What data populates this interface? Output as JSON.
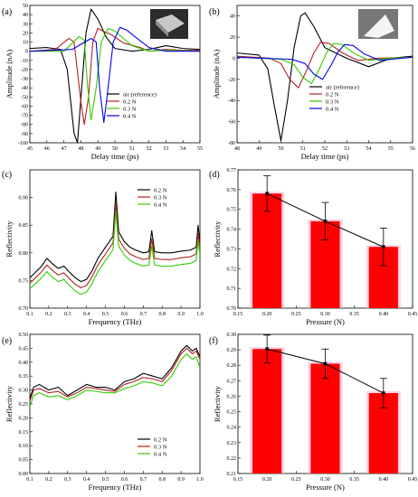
{
  "colors": {
    "black": "#000000",
    "red": "#b22222",
    "green": "#33cc00",
    "blue": "#0000ee",
    "bar": "#ff0000",
    "bar_glow": "#ffb3d0"
  },
  "chart_data": [
    {
      "panel": "(a)",
      "type": "line",
      "xlabel": "Delay time (ps)",
      "ylabel": "Amplitude (nA)",
      "xlim": [
        45,
        55
      ],
      "ylim": [
        -100,
        50
      ],
      "xticks": [
        45,
        46,
        47,
        48,
        49,
        50,
        51,
        52,
        53,
        54,
        55
      ],
      "yticks": [
        -100,
        -90,
        -80,
        -70,
        -60,
        -50,
        -40,
        -30,
        -20,
        -10,
        0,
        10,
        20,
        30,
        40,
        50
      ],
      "inset_photo": true,
      "legend": "lower-right",
      "series": [
        {
          "name": "air (reference)",
          "color": "black",
          "x": [
            45,
            46,
            46.8,
            47.2,
            47.6,
            47.8,
            48.05,
            48.3,
            48.6,
            49,
            49.5,
            50,
            51,
            52,
            53,
            54,
            55
          ],
          "y": [
            3,
            4,
            2,
            -20,
            -90,
            -100,
            -40,
            20,
            46,
            35,
            15,
            3,
            0,
            2,
            6,
            3,
            2
          ]
        },
        {
          "name": "0.2 N",
          "color": "red",
          "x": [
            45,
            46.5,
            47.3,
            47.6,
            48,
            48.2,
            48.45,
            48.7,
            49,
            49.3,
            49.8,
            50.5,
            51.5,
            52,
            53,
            54,
            55
          ],
          "y": [
            0,
            2,
            14,
            10,
            -55,
            -80,
            -50,
            10,
            25,
            22,
            18,
            9,
            4,
            0,
            2,
            1,
            1
          ]
        },
        {
          "name": "0.3 N",
          "color": "green",
          "x": [
            45,
            47,
            47.9,
            48.2,
            48.4,
            48.6,
            48.9,
            49.2,
            49.6,
            50,
            50.5,
            51,
            52,
            53,
            55
          ],
          "y": [
            0,
            0,
            16,
            12,
            -40,
            -75,
            -40,
            10,
            25,
            22,
            14,
            6,
            0,
            1,
            0
          ]
        },
        {
          "name": "0.4 N",
          "color": "blue",
          "x": [
            45,
            47.5,
            48.6,
            48.9,
            49.1,
            49.35,
            49.6,
            49.9,
            50.3,
            50.7,
            51.3,
            52,
            53,
            55
          ],
          "y": [
            0,
            2,
            14,
            10,
            -40,
            -78,
            -40,
            10,
            26,
            23,
            14,
            4,
            0,
            0
          ]
        }
      ]
    },
    {
      "panel": "(b)",
      "type": "line",
      "xlabel": "Delay time (ps)",
      "ylabel": "Amplitude (nA)",
      "xlim": [
        48,
        56
      ],
      "ylim": [
        -80,
        50
      ],
      "xticks": [
        48,
        49,
        50,
        51,
        52,
        53,
        54,
        55,
        56
      ],
      "yticks": [
        -80,
        -60,
        -40,
        -20,
        0,
        20,
        40
      ],
      "inset_photo": true,
      "legend": "lower-right",
      "series": [
        {
          "name": "air (reference)",
          "color": "black",
          "x": [
            48,
            49,
            49.4,
            49.7,
            50,
            50.3,
            50.6,
            50.9,
            51.1,
            51.5,
            52,
            53,
            54,
            55,
            56
          ],
          "y": [
            5,
            3,
            -10,
            -45,
            -78,
            -40,
            10,
            40,
            43,
            30,
            10,
            0,
            -8,
            0,
            2
          ]
        },
        {
          "name": "0.2 N",
          "color": "red",
          "x": [
            48,
            49.5,
            50,
            50.4,
            50.8,
            51.2,
            51.5,
            51.8,
            52.2,
            52.8,
            53.5,
            54.5,
            56
          ],
          "y": [
            2,
            0,
            -5,
            -20,
            -28,
            -10,
            5,
            15,
            14,
            5,
            -2,
            0,
            1
          ]
        },
        {
          "name": "0.3 N",
          "color": "green",
          "x": [
            48,
            50,
            50.6,
            51,
            51.4,
            51.8,
            52.1,
            52.4,
            52.8,
            53.3,
            54,
            55,
            56
          ],
          "y": [
            1,
            -1,
            -6,
            -18,
            -24,
            -8,
            6,
            14,
            13,
            5,
            -2,
            0,
            1
          ]
        },
        {
          "name": "0.4 N",
          "color": "blue",
          "x": [
            48,
            50.5,
            51.1,
            51.5,
            51.9,
            52.3,
            52.6,
            52.9,
            53.3,
            53.8,
            54.5,
            55.5,
            56
          ],
          "y": [
            1,
            -1,
            -5,
            -15,
            -20,
            -6,
            6,
            13,
            12,
            4,
            -2,
            0,
            1
          ]
        }
      ]
    },
    {
      "panel": "(c)",
      "type": "line",
      "xlabel": "Frequency (THz)",
      "ylabel": "Reflectivity",
      "xlim": [
        0.1,
        1.0
      ],
      "ylim": [
        0.7,
        0.95
      ],
      "xticks": [
        0.1,
        0.2,
        0.3,
        0.4,
        0.5,
        0.6,
        0.7,
        0.8,
        0.9,
        1.0
      ],
      "yticks": [
        0.7,
        0.75,
        0.8,
        0.85,
        0.9
      ],
      "legend": "top-right",
      "series": [
        {
          "name": "0.2 N",
          "color": "black",
          "x": [
            0.1,
            0.13,
            0.16,
            0.19,
            0.22,
            0.25,
            0.28,
            0.31,
            0.34,
            0.37,
            0.4,
            0.43,
            0.46,
            0.49,
            0.52,
            0.54,
            0.555,
            0.57,
            0.6,
            0.63,
            0.66,
            0.7,
            0.73,
            0.745,
            0.76,
            0.8,
            0.85,
            0.9,
            0.95,
            0.98,
            0.99,
            1.0
          ],
          "y": [
            0.755,
            0.765,
            0.775,
            0.79,
            0.78,
            0.772,
            0.776,
            0.765,
            0.755,
            0.748,
            0.752,
            0.768,
            0.79,
            0.805,
            0.82,
            0.83,
            0.91,
            0.838,
            0.82,
            0.81,
            0.805,
            0.8,
            0.802,
            0.84,
            0.802,
            0.8,
            0.8,
            0.803,
            0.805,
            0.81,
            0.85,
            0.82
          ]
        },
        {
          "name": "0.3 N",
          "color": "red",
          "x": [
            0.1,
            0.13,
            0.16,
            0.19,
            0.22,
            0.25,
            0.28,
            0.31,
            0.34,
            0.37,
            0.4,
            0.43,
            0.46,
            0.49,
            0.52,
            0.54,
            0.555,
            0.57,
            0.6,
            0.63,
            0.66,
            0.7,
            0.73,
            0.745,
            0.76,
            0.8,
            0.85,
            0.9,
            0.95,
            0.98,
            0.99,
            1.0
          ],
          "y": [
            0.745,
            0.755,
            0.765,
            0.778,
            0.768,
            0.76,
            0.764,
            0.753,
            0.743,
            0.737,
            0.741,
            0.757,
            0.778,
            0.793,
            0.808,
            0.818,
            0.89,
            0.825,
            0.808,
            0.798,
            0.793,
            0.788,
            0.79,
            0.825,
            0.79,
            0.788,
            0.788,
            0.791,
            0.793,
            0.798,
            0.835,
            0.808
          ]
        },
        {
          "name": "0.4 N",
          "color": "green",
          "x": [
            0.1,
            0.13,
            0.16,
            0.19,
            0.22,
            0.25,
            0.28,
            0.31,
            0.34,
            0.37,
            0.4,
            0.43,
            0.46,
            0.49,
            0.52,
            0.54,
            0.555,
            0.57,
            0.6,
            0.63,
            0.66,
            0.7,
            0.73,
            0.745,
            0.76,
            0.8,
            0.85,
            0.9,
            0.95,
            0.98,
            0.99,
            1.0
          ],
          "y": [
            0.735,
            0.744,
            0.754,
            0.766,
            0.756,
            0.748,
            0.752,
            0.741,
            0.731,
            0.725,
            0.729,
            0.745,
            0.766,
            0.781,
            0.796,
            0.806,
            0.875,
            0.812,
            0.796,
            0.786,
            0.781,
            0.776,
            0.778,
            0.812,
            0.778,
            0.776,
            0.776,
            0.779,
            0.781,
            0.786,
            0.822,
            0.796
          ]
        }
      ]
    },
    {
      "panel": "(d)",
      "type": "bar",
      "xlabel": "Pressure (N)",
      "ylabel": "Reflectivity",
      "xlim": [
        0.15,
        0.45
      ],
      "ylim": [
        0.7,
        0.77
      ],
      "xticks": [
        0.15,
        0.2,
        0.25,
        0.3,
        0.35,
        0.4,
        0.45
      ],
      "yticks": [
        0.7,
        0.71,
        0.72,
        0.73,
        0.74,
        0.75,
        0.76,
        0.77
      ],
      "x": [
        0.2,
        0.3,
        0.4
      ],
      "values": [
        0.758,
        0.744,
        0.731
      ],
      "errors": [
        0.009,
        0.0095,
        0.0095
      ],
      "bar_width": 0.05,
      "trend_line": true
    },
    {
      "panel": "(e)",
      "type": "line",
      "xlabel": "Frequency (THz)",
      "ylabel": "Reflectivity",
      "xlim": [
        0.1,
        1.0
      ],
      "ylim": [
        0.0,
        0.5
      ],
      "xticks": [
        0.1,
        0.2,
        0.3,
        0.4,
        0.5,
        0.6,
        0.7,
        0.8,
        0.9,
        1.0
      ],
      "yticks": [
        0.0,
        0.05,
        0.1,
        0.15,
        0.2,
        0.25,
        0.3,
        0.35,
        0.4,
        0.45,
        0.5
      ],
      "legend": "bottom-right",
      "series": [
        {
          "name": "0.2 N",
          "color": "black",
          "x": [
            0.1,
            0.12,
            0.15,
            0.2,
            0.25,
            0.3,
            0.35,
            0.4,
            0.45,
            0.5,
            0.55,
            0.6,
            0.65,
            0.7,
            0.75,
            0.8,
            0.85,
            0.9,
            0.93,
            0.96,
            0.98,
            1.0
          ],
          "y": [
            0.27,
            0.31,
            0.32,
            0.3,
            0.31,
            0.28,
            0.3,
            0.32,
            0.31,
            0.31,
            0.3,
            0.33,
            0.34,
            0.36,
            0.35,
            0.34,
            0.38,
            0.44,
            0.46,
            0.44,
            0.45,
            0.42
          ]
        },
        {
          "name": "0.3 N",
          "color": "red",
          "x": [
            0.1,
            0.12,
            0.15,
            0.2,
            0.25,
            0.3,
            0.35,
            0.4,
            0.45,
            0.5,
            0.55,
            0.6,
            0.65,
            0.7,
            0.75,
            0.8,
            0.85,
            0.9,
            0.93,
            0.96,
            0.98,
            1.0
          ],
          "y": [
            0.26,
            0.3,
            0.305,
            0.29,
            0.295,
            0.275,
            0.29,
            0.31,
            0.305,
            0.3,
            0.295,
            0.32,
            0.33,
            0.345,
            0.34,
            0.33,
            0.37,
            0.43,
            0.45,
            0.43,
            0.44,
            0.41
          ]
        },
        {
          "name": "0.4 N",
          "color": "green",
          "x": [
            0.1,
            0.12,
            0.15,
            0.2,
            0.25,
            0.3,
            0.35,
            0.4,
            0.45,
            0.5,
            0.55,
            0.6,
            0.65,
            0.7,
            0.75,
            0.8,
            0.85,
            0.9,
            0.93,
            0.96,
            0.98,
            1.0
          ],
          "y": [
            0.24,
            0.28,
            0.29,
            0.275,
            0.28,
            0.265,
            0.28,
            0.3,
            0.295,
            0.29,
            0.29,
            0.305,
            0.315,
            0.33,
            0.325,
            0.315,
            0.35,
            0.41,
            0.43,
            0.41,
            0.42,
            0.38
          ]
        }
      ]
    },
    {
      "panel": "(f)",
      "type": "bar",
      "xlabel": "Pressure (N)",
      "ylabel": "Reflectivity",
      "xlim": [
        0.15,
        0.45
      ],
      "ylim": [
        0.21,
        0.3
      ],
      "xticks": [
        0.15,
        0.2,
        0.25,
        0.3,
        0.35,
        0.4,
        0.45
      ],
      "yticks": [
        0.21,
        0.22,
        0.23,
        0.24,
        0.25,
        0.26,
        0.27,
        0.28,
        0.29,
        0.3
      ],
      "x": [
        0.2,
        0.3,
        0.4
      ],
      "values": [
        0.2905,
        0.281,
        0.262
      ],
      "errors": [
        0.009,
        0.0095,
        0.0095
      ],
      "bar_width": 0.05,
      "trend_line": true
    }
  ]
}
